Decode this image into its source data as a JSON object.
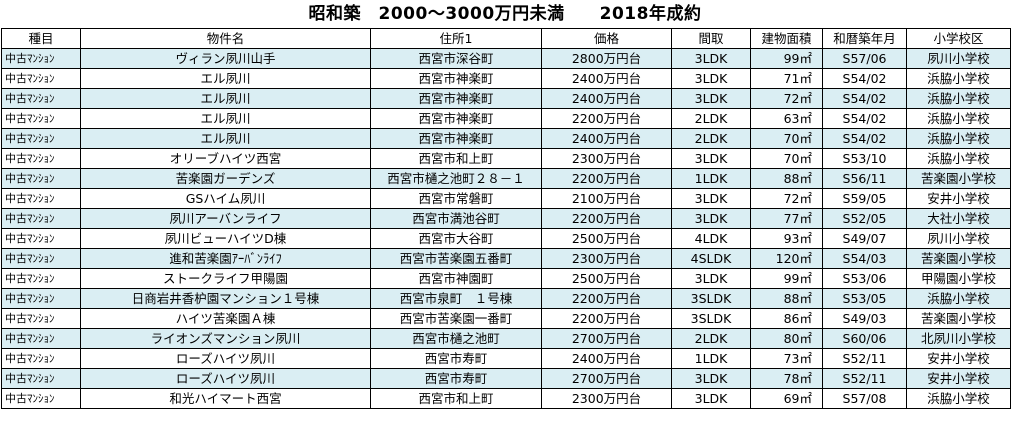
{
  "title": "昭和築　2000～3000万円未満　　2018年成約",
  "headers": [
    "種目",
    "物件名",
    "住所1",
    "価格",
    "間取",
    "建物面積",
    "和暦築年月",
    "小学校区"
  ],
  "rows": [
    [
      "中古ﾏﾝｼｮﾝ",
      "ヴィラン夙川山手",
      "西宮市深谷町",
      "2800万円台",
      "3LDK",
      "99㎡",
      "S57/06",
      "夙川小学校"
    ],
    [
      "中古ﾏﾝｼｮﾝ",
      "エル夙川",
      "西宮市神楽町",
      "2400万円台",
      "3LDK",
      "71㎡",
      "S54/02",
      "浜脇小学校"
    ],
    [
      "中古ﾏﾝｼｮﾝ",
      "エル夙川",
      "西宮市神楽町",
      "2400万円台",
      "3LDK",
      "72㎡",
      "S54/02",
      "浜脇小学校"
    ],
    [
      "中古ﾏﾝｼｮﾝ",
      "エル夙川",
      "西宮市神楽町",
      "2200万円台",
      "2LDK",
      "63㎡",
      "S54/02",
      "浜脇小学校"
    ],
    [
      "中古ﾏﾝｼｮﾝ",
      "エル夙川",
      "西宮市神楽町",
      "2400万円台",
      "2LDK",
      "70㎡",
      "S54/02",
      "浜脇小学校"
    ],
    [
      "中古ﾏﾝｼｮﾝ",
      "オリーブハイツ西宮",
      "西宮市和上町",
      "2300万円台",
      "3LDK",
      "70㎡",
      "S53/10",
      "浜脇小学校"
    ],
    [
      "中古ﾏﾝｼｮﾝ",
      "苦楽園ガーデンズ",
      "西宮市樋之池町２８－１",
      "2200万円台",
      "1LDK",
      "88㎡",
      "S56/11",
      "苦楽園小学校"
    ],
    [
      "中古ﾏﾝｼｮﾝ",
      "GSハイム夙川",
      "西宮市常磐町",
      "2100万円台",
      "3LDK",
      "72㎡",
      "S59/05",
      "安井小学校"
    ],
    [
      "中古ﾏﾝｼｮﾝ",
      "夙川アーバンライフ",
      "西宮市満池谷町",
      "2200万円台",
      "3LDK",
      "77㎡",
      "S52/05",
      "大社小学校"
    ],
    [
      "中古ﾏﾝｼｮﾝ",
      "夙川ビューハイツD棟",
      "西宮市大谷町",
      "2500万円台",
      "4LDK",
      "93㎡",
      "S49/07",
      "夙川小学校"
    ],
    [
      "中古ﾏﾝｼｮﾝ",
      "進和苦楽園ｱｰﾊﾞﾝﾗｲﾌ",
      "西宮市苦楽園五番町",
      "2300万円台",
      "4SLDK",
      "120㎡",
      "S54/03",
      "苦楽園小学校"
    ],
    [
      "中古ﾏﾝｼｮﾝ",
      "ストークライフ甲陽園",
      "西宮市神園町",
      "2500万円台",
      "3LDK",
      "99㎡",
      "S53/06",
      "甲陽園小学校"
    ],
    [
      "中古ﾏﾝｼｮﾝ",
      "日商岩井香枦園マンション１号棟",
      "西宮市泉町　１号棟",
      "2200万円台",
      "3SLDK",
      "88㎡",
      "S53/05",
      "浜脇小学校"
    ],
    [
      "中古ﾏﾝｼｮﾝ",
      "ハイツ苦楽園Ａ棟",
      "西宮市苦楽園一番町",
      "2200万円台",
      "3SLDK",
      "86㎡",
      "S49/03",
      "苦楽園小学校"
    ],
    [
      "中古ﾏﾝｼｮﾝ",
      "ライオンズマンション夙川",
      "西宮市樋之池町",
      "2700万円台",
      "2LDK",
      "80㎡",
      "S60/06",
      "北夙川小学校"
    ],
    [
      "中古ﾏﾝｼｮﾝ",
      "ローズハイツ夙川",
      "西宮市寿町",
      "2400万円台",
      "1LDK",
      "73㎡",
      "S52/11",
      "安井小学校"
    ],
    [
      "中古ﾏﾝｼｮﾝ",
      "ローズハイツ夙川",
      "西宮市寿町",
      "2700万円台",
      "3LDK",
      "78㎡",
      "S52/11",
      "安井小学校"
    ],
    [
      "中古ﾏﾝｼｮﾝ",
      "和光ハイマート西宮",
      "西宮市和上町",
      "2300万円台",
      "3LDK",
      "69㎡",
      "S57/08",
      "浜脇小学校"
    ]
  ],
  "colors": {
    "alt_row": "#daeef3",
    "border": "#000000"
  }
}
